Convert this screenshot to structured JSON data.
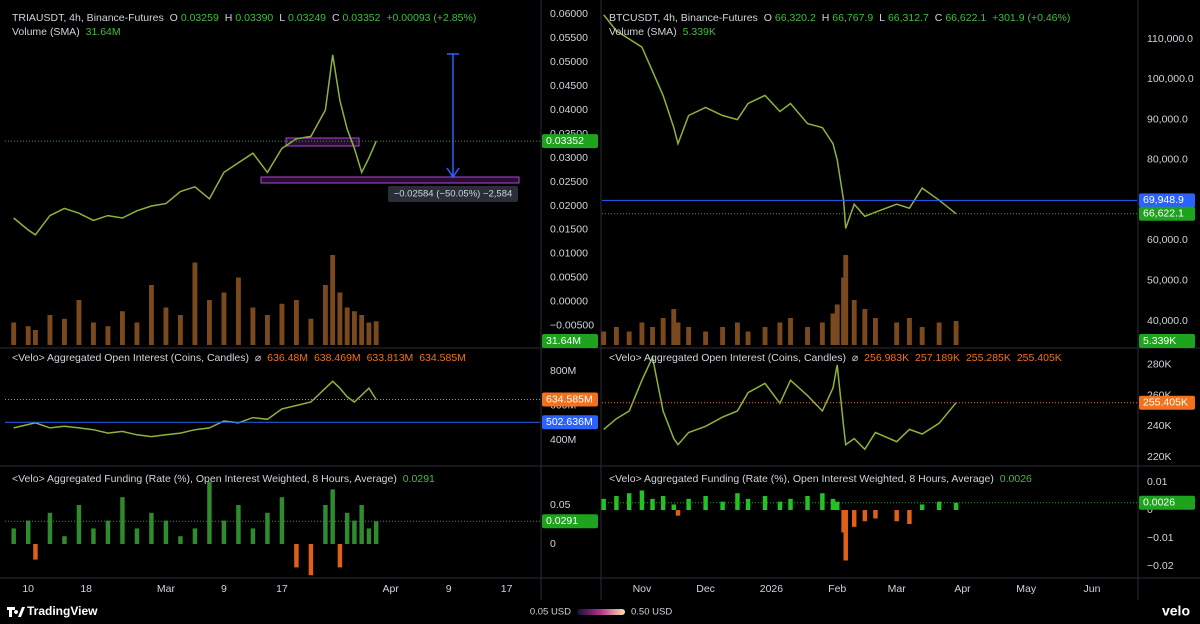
{
  "chart_data": [
    {
      "type": "line",
      "title": "TRIAUSDT, 4h, Binance-Futures",
      "ohlc_labels": [
        "O",
        "H",
        "L",
        "C"
      ],
      "ohlc_values": [
        "0.03259",
        "0.03390",
        "0.03249",
        "0.03352"
      ],
      "change": "+0.00093 (+2.85%)",
      "volume_title": "Volume (SMA)",
      "volume_value": "31.64M",
      "annotation": "−0.02584 (−50.05%) −2,584",
      "x": [
        -2,
        0,
        1,
        3,
        5,
        7,
        9,
        11,
        13,
        15,
        17,
        19,
        21,
        23,
        25,
        27,
        29,
        31,
        33,
        35,
        37,
        39,
        41,
        42,
        43,
        44,
        45,
        46,
        47,
        48
      ],
      "values": [
        0.0175,
        0.015,
        0.014,
        0.018,
        0.0195,
        0.0185,
        0.017,
        0.018,
        0.0175,
        0.019,
        0.02,
        0.0205,
        0.023,
        0.024,
        0.0215,
        0.027,
        0.029,
        0.031,
        0.027,
        0.032,
        0.034,
        0.0345,
        0.04,
        0.0515,
        0.042,
        0.036,
        0.032,
        0.027,
        0.03,
        0.0335
      ],
      "volume": [
        30,
        25,
        20,
        40,
        35,
        60,
        30,
        25,
        45,
        30,
        80,
        50,
        40,
        110,
        60,
        70,
        90,
        50,
        40,
        55,
        60,
        35,
        80,
        120,
        70,
        50,
        45,
        40,
        30,
        31.64
      ],
      "color": "#8fb33a",
      "volume_color": "#7a4a1e",
      "last_color": "#1fa31f",
      "ylim": [
        -0.0094,
        0.0619
      ],
      "yticks": [
        {
          "value": 0.06,
          "label": "0.06000"
        },
        {
          "value": 0.055,
          "label": "0.05500"
        },
        {
          "value": 0.05,
          "label": "0.05000"
        },
        {
          "value": 0.045,
          "label": "0.04500"
        },
        {
          "value": 0.04,
          "label": "0.04000"
        },
        {
          "value": 0.035,
          "label": "0.03500"
        },
        {
          "value": 0.03,
          "label": "0.03000"
        },
        {
          "value": 0.025,
          "label": "0.02500"
        },
        {
          "value": 0.02,
          "label": "0.02000"
        },
        {
          "value": 0.015,
          "label": "0.01500"
        },
        {
          "value": 0.01,
          "label": "0.01000"
        },
        {
          "value": 0.005,
          "label": "0.00500"
        },
        {
          "value": 0,
          "label": "0.00000"
        },
        {
          "value": -0.005,
          "label": "−0.00500"
        }
      ],
      "last": 0.03352
    },
    {
      "type": "line",
      "title": "<Velo> Aggregated Open Interest (Coins, Candles)",
      "symbol": "⌀",
      "header_values": [
        "636.48M",
        "638.469M",
        "633.813M",
        "634.585M"
      ],
      "x": [
        -2,
        0,
        1,
        3,
        5,
        7,
        9,
        11,
        13,
        15,
        17,
        19,
        21,
        23,
        25,
        27,
        29,
        31,
        33,
        35,
        37,
        39,
        41,
        42,
        43,
        44,
        45,
        46,
        47,
        48
      ],
      "values": [
        470,
        490,
        500,
        470,
        480,
        470,
        460,
        440,
        450,
        430,
        420,
        430,
        440,
        460,
        470,
        510,
        500,
        530,
        520,
        580,
        600,
        620,
        700,
        740,
        700,
        650,
        620,
        660,
        700,
        635
      ],
      "color": "#8fb33a",
      "last_color": "#f2711c",
      "ref_color": "#2962ff",
      "ylim": [
        255.1,
        927.5
      ],
      "yticks": [
        {
          "value": 800,
          "label": "800M"
        },
        {
          "value": 600,
          "label": "600M"
        },
        {
          "value": 400,
          "label": "400M"
        }
      ],
      "last": {
        "value": 634.585,
        "label": "634.585M"
      },
      "ref": {
        "value": 502.636,
        "label": "502.636M"
      }
    },
    {
      "type": "bar",
      "title": "<Velo> Aggregated Funding (Rate (%), Open Interest Weighted, 8 Hours, Average)",
      "x": [
        -2,
        0,
        1,
        3,
        5,
        7,
        9,
        11,
        13,
        15,
        17,
        19,
        21,
        23,
        25,
        27,
        29,
        31,
        33,
        35,
        37,
        39,
        41,
        42,
        43,
        44,
        45,
        46,
        47,
        48
      ],
      "values": [
        0.02,
        0.03,
        -0.02,
        0.04,
        0.01,
        0.05,
        0.02,
        0.03,
        0.06,
        0.02,
        0.04,
        0.03,
        0.01,
        0.02,
        0.08,
        0.03,
        0.05,
        0.02,
        0.04,
        0.06,
        -0.03,
        -0.04,
        0.05,
        0.07,
        -0.03,
        0.04,
        0.03,
        0.05,
        0.02,
        0.0291
      ],
      "color": "#2e8b2e",
      "neg_color": "#e0601a",
      "last_color": "#1fa31f",
      "ylim": [
        -0.0423,
        0.0987
      ],
      "yticks": [
        0.05,
        0
      ],
      "last": 0.0291,
      "xlim": [
        -3.2,
        70.6
      ],
      "xticks": [
        {
          "value": 0,
          "label": "10"
        },
        {
          "value": 8,
          "label": "18"
        },
        {
          "value": 19,
          "label": "Mar"
        },
        {
          "value": 27,
          "label": "9"
        },
        {
          "value": 35,
          "label": "17"
        },
        {
          "value": 50,
          "label": "Apr"
        },
        {
          "value": 58,
          "label": "9"
        },
        {
          "value": 66,
          "label": "17"
        }
      ]
    },
    {
      "type": "line",
      "title": "BTCUSDT, 4h, Binance-Futures",
      "ohlc_labels": [
        "O",
        "H",
        "L",
        "C"
      ],
      "ohlc_values": [
        "66,320.2",
        "66,767.9",
        "66,312.7",
        "66,622.1"
      ],
      "change": "+301.9 (+0.46%)",
      "volume_title": "Volume (SMA)",
      "volume_value": "5.339K",
      "x": [
        -18,
        -12,
        -6,
        0,
        5,
        10,
        15,
        17,
        22,
        30,
        38,
        45,
        50,
        58,
        65,
        70,
        78,
        85,
        90,
        92,
        95,
        96,
        100,
        105,
        110,
        120,
        126,
        132,
        140,
        148
      ],
      "values": [
        116000,
        112000,
        110000,
        108000,
        102000,
        96000,
        88000,
        84000,
        91000,
        93000,
        91000,
        90000,
        94000,
        96000,
        92000,
        94000,
        89000,
        88000,
        84000,
        80000,
        70000,
        63000,
        69000,
        66000,
        67000,
        69000,
        68000,
        73000,
        70000,
        66622.1
      ],
      "volume": [
        3,
        4,
        3,
        5,
        4,
        6,
        8,
        5,
        4,
        3,
        4,
        5,
        3,
        4,
        5,
        6,
        4,
        5,
        7,
        9,
        15,
        20,
        10,
        8,
        6,
        5,
        6,
        4,
        5,
        5.339
      ],
      "color": "#8fb33a",
      "volume_color": "#7a4a1e",
      "last_color": "#1fa31f",
      "ref_color": "#2962ff",
      "ylim": [
        33550,
        118440
      ],
      "yticks": [
        {
          "value": 110000,
          "label": "110,000.0"
        },
        {
          "value": 100000,
          "label": "100,000.0"
        },
        {
          "value": 90000,
          "label": "90,000.0"
        },
        {
          "value": 80000,
          "label": "80,000.0"
        },
        {
          "value": 70000,
          "label": "70,000.0"
        },
        {
          "value": 60000,
          "label": "60,000.0"
        },
        {
          "value": 50000,
          "label": "50,000.0"
        },
        {
          "value": 40000,
          "label": "40,000.0"
        }
      ],
      "last": {
        "value": 66622.1,
        "label": "66,622.1"
      },
      "ref": {
        "value": 69948.9,
        "label": "69,948.9"
      }
    },
    {
      "type": "line",
      "title": "<Velo> Aggregated Open Interest (Coins, Candles)",
      "symbol": "⌀",
      "header_values": [
        "256.983K",
        "257.189K",
        "255.285K",
        "255.405K"
      ],
      "x": [
        -18,
        -12,
        -6,
        0,
        5,
        10,
        15,
        17,
        22,
        30,
        38,
        45,
        50,
        58,
        65,
        70,
        78,
        85,
        90,
        92,
        95,
        96,
        100,
        105,
        110,
        120,
        126,
        132,
        140,
        148
      ],
      "values": [
        238,
        245,
        250,
        270,
        285,
        250,
        232,
        228,
        236,
        240,
        246,
        250,
        262,
        268,
        255,
        270,
        260,
        250,
        265,
        280,
        240,
        228,
        232,
        225,
        236,
        230,
        238,
        235,
        242,
        255.405
      ],
      "color": "#8fb33a",
      "last_color": "#f2711c",
      "ylim": [
        214.8,
        290.4
      ],
      "yticks": [
        {
          "value": 280,
          "label": "280K"
        },
        {
          "value": 260,
          "label": "260K"
        },
        {
          "value": 240,
          "label": "240K"
        },
        {
          "value": 220,
          "label": "220K"
        }
      ],
      "last": {
        "value": 255.405,
        "label": "255.405K"
      }
    },
    {
      "type": "bar",
      "title": "<Velo> Aggregated Funding (Rate (%), Open Interest Weighted, 8 Hours, Average)",
      "x": [
        -18,
        -12,
        -6,
        0,
        5,
        10,
        15,
        17,
        22,
        30,
        38,
        45,
        50,
        58,
        65,
        70,
        78,
        85,
        90,
        92,
        95,
        96,
        100,
        105,
        110,
        120,
        126,
        132,
        140,
        148
      ],
      "values": [
        0.004,
        0.005,
        0.006,
        0.007,
        0.004,
        0.005,
        0.002,
        -0.002,
        0.004,
        0.005,
        0.003,
        0.006,
        0.004,
        0.005,
        0.003,
        0.004,
        0.005,
        0.006,
        0.004,
        0.003,
        -0.008,
        -0.018,
        -0.006,
        -0.004,
        -0.003,
        -0.004,
        -0.005,
        0.002,
        0.003,
        0.0026
      ],
      "color": "#22c322",
      "neg_color": "#e0601a",
      "last_color": "#1fa31f",
      "ylim": [
        -0.0239,
        0.01536
      ],
      "yticks": [
        0.01,
        0,
        {
          "value": -0.01,
          "label": "−0.01"
        },
        {
          "value": -0.02,
          "label": "−0.02"
        }
      ],
      "last": 0.0026,
      "xlim": [
        -18.8,
        233.2
      ],
      "xticks": [
        {
          "value": 0,
          "label": "Nov"
        },
        {
          "value": 30,
          "label": "Dec"
        },
        {
          "value": 61,
          "label": "2026"
        },
        {
          "value": 92,
          "label": "Feb"
        },
        {
          "value": 120,
          "label": "Mar"
        },
        {
          "value": 151,
          "label": "Apr"
        },
        {
          "value": 181,
          "label": "May"
        },
        {
          "value": 212,
          "label": "Jun"
        }
      ]
    }
  ],
  "footer": {
    "brand": "TradingView",
    "scale_min": "0.05 USD",
    "scale_max": "0.50 USD",
    "brand2": "velo"
  }
}
